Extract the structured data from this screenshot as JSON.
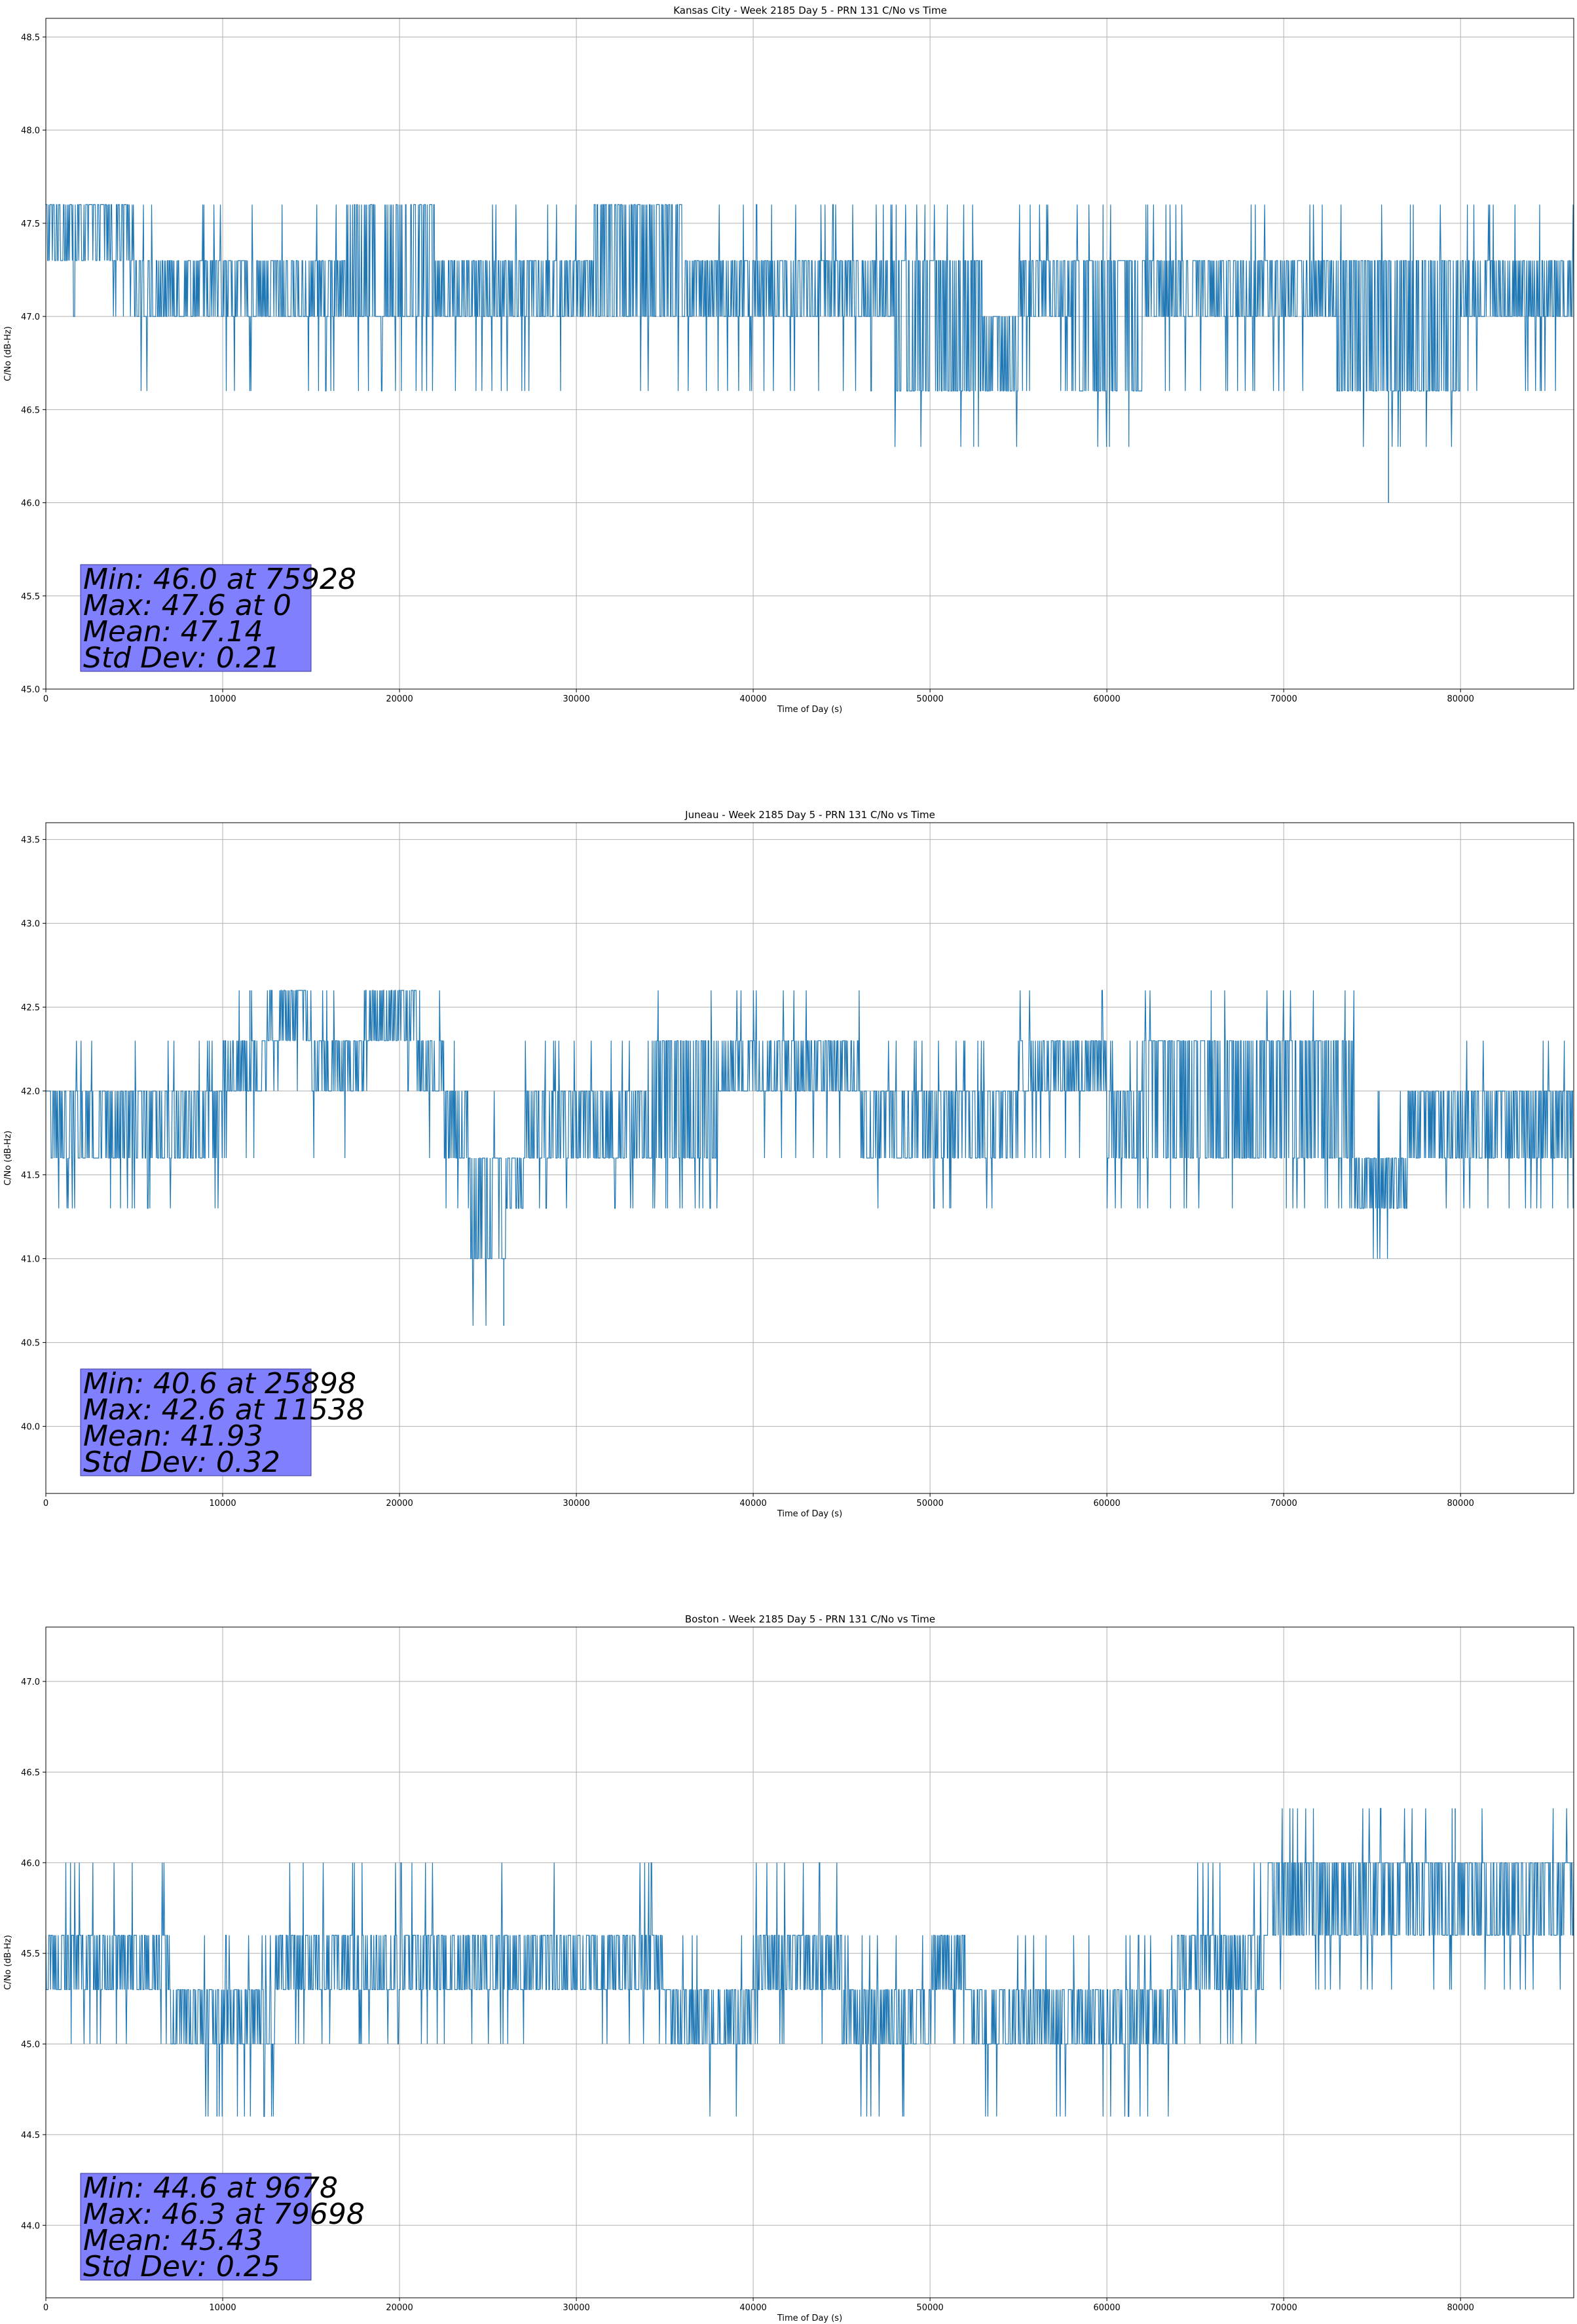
{
  "figure": {
    "line_color": "#1f77b4",
    "grid_color": "#b0b0b0",
    "stats_box_color": "#8080ff",
    "stats_box_edge": "#3a3a9a"
  },
  "chart_data": [
    {
      "type": "line",
      "title": "Kansas City - Week 2185 Day 5 - PRN 131 C/No vs Time",
      "xlabel": "Time of Day (s)",
      "ylabel": "C/No (dB-Hz)",
      "xlim": [
        0,
        86400
      ],
      "ylim": [
        45.0,
        48.6
      ],
      "xticks": [
        0,
        10000,
        20000,
        30000,
        40000,
        50000,
        60000,
        70000,
        80000
      ],
      "yticks": [
        "45.0",
        "45.5",
        "46.0",
        "46.5",
        "47.0",
        "47.5",
        "48.0",
        "48.5"
      ],
      "grid": true,
      "levels": [
        46.0,
        46.3,
        46.6,
        47.0,
        47.3,
        47.6
      ],
      "base_profile": [
        [
          0,
          47.3,
          47.6
        ],
        [
          5000,
          47.0,
          47.3
        ],
        [
          17000,
          47.0,
          47.6
        ],
        [
          22000,
          47.0,
          47.3
        ],
        [
          26000,
          47.0,
          47.3
        ],
        [
          31000,
          47.0,
          47.6
        ],
        [
          36000,
          47.0,
          47.3
        ],
        [
          48000,
          46.6,
          47.3
        ],
        [
          53000,
          46.6,
          47.0
        ],
        [
          55000,
          47.0,
          47.3
        ],
        [
          58000,
          46.6,
          47.3
        ],
        [
          62000,
          47.0,
          47.3
        ],
        [
          73000,
          46.6,
          47.3
        ],
        [
          80000,
          47.0,
          47.3
        ],
        [
          86400,
          47.0,
          47.3
        ]
      ],
      "min": {
        "value": 46.0,
        "time": 75928
      },
      "max": {
        "value": 47.6,
        "time": 0
      },
      "mean": 47.14,
      "std": 0.21,
      "stats": {
        "min_line": "Min: 46.0 at 75928",
        "max_line": "Max: 47.6 at 0",
        "mean_line": "Mean: 47.14",
        "std_line": "Std Dev: 0.21"
      }
    },
    {
      "type": "line",
      "title": "Juneau - Week 2185 Day 5 - PRN 131 C/No vs Time",
      "xlabel": "Time of Day (s)",
      "ylabel": "C/No (dB-Hz)",
      "xlim": [
        0,
        86400
      ],
      "ylim": [
        39.6,
        43.6
      ],
      "xticks": [
        0,
        10000,
        20000,
        30000,
        40000,
        50000,
        60000,
        70000,
        80000
      ],
      "yticks": [
        "40.0",
        "40.5",
        "41.0",
        "41.5",
        "42.0",
        "42.5",
        "43.0",
        "43.5"
      ],
      "grid": true,
      "levels": [
        40.6,
        41.0,
        41.3,
        41.6,
        42.0,
        42.3,
        42.6
      ],
      "base_profile": [
        [
          0,
          41.6,
          42.0
        ],
        [
          10000,
          42.0,
          42.3
        ],
        [
          12500,
          42.3,
          42.6
        ],
        [
          15000,
          42.0,
          42.3
        ],
        [
          18000,
          42.3,
          42.6
        ],
        [
          21000,
          42.0,
          42.3
        ],
        [
          22500,
          41.6,
          42.0
        ],
        [
          24000,
          41.0,
          41.6
        ],
        [
          26000,
          41.3,
          41.6
        ],
        [
          27000,
          41.6,
          42.0
        ],
        [
          34000,
          41.6,
          42.3
        ],
        [
          38000,
          42.0,
          42.3
        ],
        [
          46000,
          41.6,
          42.0
        ],
        [
          55000,
          42.0,
          42.3
        ],
        [
          60000,
          41.6,
          42.0
        ],
        [
          62000,
          41.6,
          42.3
        ],
        [
          70000,
          41.6,
          42.3
        ],
        [
          74000,
          41.3,
          41.6
        ],
        [
          77000,
          41.6,
          42.0
        ],
        [
          86400,
          41.6,
          42.0
        ]
      ],
      "min": {
        "value": 40.6,
        "time": 25898
      },
      "max": {
        "value": 42.6,
        "time": 11538
      },
      "mean": 41.93,
      "std": 0.32,
      "stats": {
        "min_line": "Min: 40.6 at 25898",
        "max_line": "Max: 42.6 at 11538",
        "mean_line": "Mean: 41.93",
        "std_line": "Std Dev: 0.32"
      }
    },
    {
      "type": "line",
      "title": "Boston - Week 2185 Day 5 - PRN 131 C/No vs Time",
      "xlabel": "Time of Day (s)",
      "ylabel": "C/No (dB-Hz)",
      "xlim": [
        0,
        86400
      ],
      "ylim": [
        43.6,
        47.3
      ],
      "xticks": [
        0,
        10000,
        20000,
        30000,
        40000,
        50000,
        60000,
        70000,
        80000
      ],
      "yticks": [
        "44.0",
        "44.5",
        "45.0",
        "45.5",
        "46.0",
        "46.5",
        "47.0"
      ],
      "grid": true,
      "levels": [
        44.6,
        45.0,
        45.3,
        45.6,
        46.0,
        46.3
      ],
      "base_profile": [
        [
          0,
          45.3,
          45.6
        ],
        [
          7000,
          45.0,
          45.3
        ],
        [
          13000,
          45.3,
          45.6
        ],
        [
          17500,
          45.3,
          45.6
        ],
        [
          35000,
          45.0,
          45.3
        ],
        [
          40000,
          45.3,
          45.6
        ],
        [
          45000,
          45.0,
          45.3
        ],
        [
          50000,
          45.3,
          45.6
        ],
        [
          52000,
          45.0,
          45.3
        ],
        [
          64000,
          45.3,
          45.6
        ],
        [
          69000,
          45.6,
          46.0
        ],
        [
          86400,
          45.6,
          46.0
        ]
      ],
      "min": {
        "value": 44.6,
        "time": 9678
      },
      "max": {
        "value": 46.3,
        "time": 79698
      },
      "mean": 45.43,
      "std": 0.25,
      "stats": {
        "min_line": "Min: 44.6 at 9678",
        "max_line": "Max: 46.3 at 79698",
        "mean_line": "Mean: 45.43",
        "std_line": "Std Dev: 0.25"
      }
    }
  ]
}
